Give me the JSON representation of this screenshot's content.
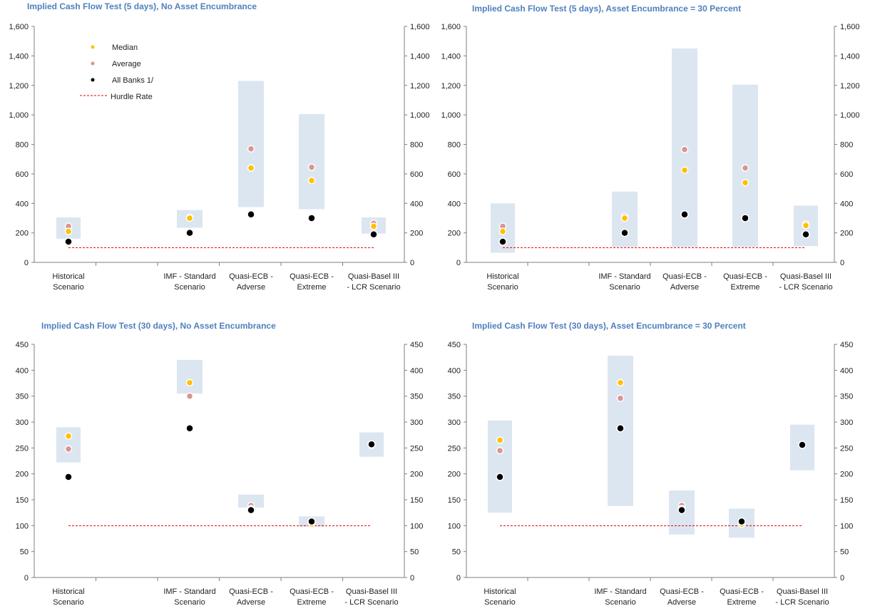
{
  "colors": {
    "range_band": "#dce6f1",
    "median": "#ffc000",
    "average": "#d99594",
    "all_banks": "#000000",
    "hurdle": "#e00000",
    "title": "#4f81bd",
    "axis": "#7f7f7f"
  },
  "legend": {
    "median": "Median",
    "average": "Average",
    "all_banks": "All Banks 1/",
    "hurdle": "Hurdle Rate"
  },
  "chart_data": [
    {
      "type": "scatter",
      "title": "Implied Cash Flow Test (5 days),  No Asset Encumbrance",
      "categories": [
        [
          "Historical",
          "Scenario"
        ],
        [
          "IMF - Standard",
          "Scenario"
        ],
        [
          "Quasi-ECB -",
          "Adverse"
        ],
        [
          "Quasi-ECB -",
          "Extreme"
        ],
        [
          "Quasi-Basel III",
          "- LCR Scenario"
        ]
      ],
      "ylim": [
        0,
        1600
      ],
      "yticks": [
        0,
        200,
        400,
        600,
        800,
        1000,
        1200,
        1400,
        1600
      ],
      "range_low": [
        160,
        235,
        375,
        360,
        195
      ],
      "range_high": [
        305,
        355,
        1230,
        1005,
        305
      ],
      "median": [
        210,
        300,
        640,
        555,
        245
      ],
      "average": [
        245,
        305,
        770,
        645,
        265
      ],
      "all_banks": [
        140,
        200,
        325,
        300,
        190
      ],
      "hurdle_rate": 100,
      "legend_position": "top-left"
    },
    {
      "type": "scatter",
      "title": "Implied Cash Flow Test (5 days),  Asset Encumbrance  = 30 Percent",
      "categories": [
        [
          "Historical",
          "Scenario"
        ],
        [
          "IMF - Standard",
          "Scenario"
        ],
        [
          "Quasi-ECB -",
          "Adverse"
        ],
        [
          "Quasi-ECB -",
          "Extreme"
        ],
        [
          "Quasi-Basel III",
          "- LCR Scenario"
        ]
      ],
      "ylim": [
        0,
        1600
      ],
      "yticks": [
        0,
        200,
        400,
        600,
        800,
        1000,
        1200,
        1400,
        1600
      ],
      "range_low": [
        65,
        105,
        105,
        105,
        110
      ],
      "range_high": [
        400,
        480,
        1450,
        1205,
        385
      ],
      "median": [
        210,
        300,
        625,
        540,
        250
      ],
      "average": [
        245,
        310,
        765,
        640,
        260
      ],
      "all_banks": [
        140,
        200,
        325,
        300,
        190
      ],
      "hurdle_rate": 100
    },
    {
      "type": "scatter",
      "title": "Implied Cash Flow Test (30 days),  No Asset Encumbrance",
      "categories": [
        [
          "Historical",
          "Scenario"
        ],
        [
          "IMF - Standard",
          "Scenario"
        ],
        [
          "Quasi-ECB -",
          "Adverse"
        ],
        [
          "Quasi-ECB -",
          "Extreme"
        ],
        [
          "Quasi-Basel III",
          "- LCR Scenario"
        ]
      ],
      "ylim": [
        0,
        450
      ],
      "yticks": [
        0,
        50,
        100,
        150,
        200,
        250,
        300,
        350,
        400,
        450
      ],
      "range_low": [
        222,
        355,
        135,
        98,
        233
      ],
      "range_high": [
        290,
        420,
        160,
        118,
        280
      ],
      "median": [
        273,
        376,
        133,
        103,
        255
      ],
      "average": [
        248,
        350,
        139,
        106,
        257
      ],
      "all_banks": [
        194,
        288,
        130,
        108,
        257
      ],
      "hurdle_rate": 100
    },
    {
      "type": "scatter",
      "title": "Implied Cash Flow Test (30 days),  Asset Encumbrance  = 30 Percent",
      "categories": [
        [
          "Historical",
          "Scenario"
        ],
        [
          "IMF - Standard",
          "Scenario"
        ],
        [
          "Quasi-ECB -",
          "Adverse"
        ],
        [
          "Quasi-ECB -",
          "Extreme"
        ],
        [
          "Quasi-Basel III",
          "- LCR Scenario"
        ]
      ],
      "ylim": [
        0,
        450
      ],
      "yticks": [
        0,
        50,
        100,
        150,
        200,
        250,
        300,
        350,
        400,
        450
      ],
      "range_low": [
        125,
        138,
        83,
        77,
        207
      ],
      "range_high": [
        303,
        428,
        168,
        133,
        295
      ],
      "median": [
        265,
        376,
        133,
        103,
        255
      ],
      "average": [
        245,
        346,
        139,
        106,
        256
      ],
      "all_banks": [
        194,
        288,
        130,
        108,
        256
      ],
      "hurdle_rate": 100
    }
  ]
}
